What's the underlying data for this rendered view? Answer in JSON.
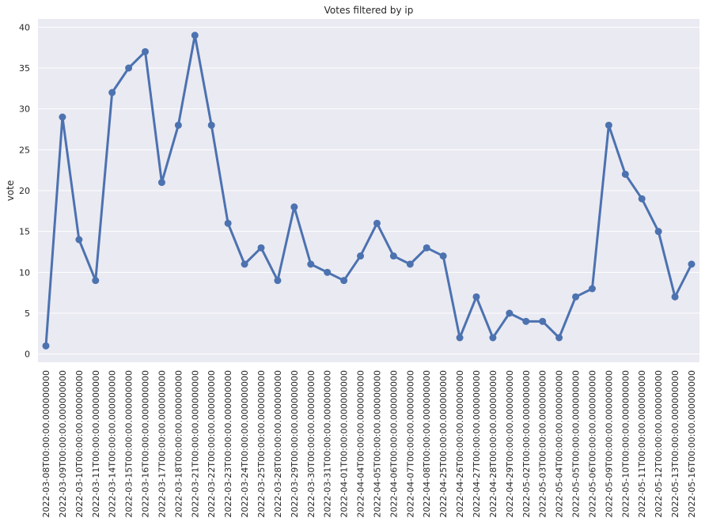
{
  "chart_data": {
    "type": "line",
    "title": "Votes filtered by ip",
    "xlabel": "",
    "ylabel": "vote",
    "ylim": [
      -1,
      41
    ],
    "yticks": [
      0,
      5,
      10,
      15,
      20,
      25,
      30,
      35,
      40
    ],
    "grid": true,
    "colors": {
      "background": "#eaeaf2",
      "grid": "#ffffff",
      "line": "#4c72b0"
    },
    "categories": [
      "2022-03-08T00:00:00.000000000",
      "2022-03-09T00:00:00.000000000",
      "2022-03-10T00:00:00.000000000",
      "2022-03-11T00:00:00.000000000",
      "2022-03-14T00:00:00.000000000",
      "2022-03-15T00:00:00.000000000",
      "2022-03-16T00:00:00.000000000",
      "2022-03-17T00:00:00.000000000",
      "2022-03-18T00:00:00.000000000",
      "2022-03-21T00:00:00.000000000",
      "2022-03-22T00:00:00.000000000",
      "2022-03-23T00:00:00.000000000",
      "2022-03-24T00:00:00.000000000",
      "2022-03-25T00:00:00.000000000",
      "2022-03-28T00:00:00.000000000",
      "2022-03-29T00:00:00.000000000",
      "2022-03-30T00:00:00.000000000",
      "2022-03-31T00:00:00.000000000",
      "2022-04-01T00:00:00.000000000",
      "2022-04-04T00:00:00.000000000",
      "2022-04-05T00:00:00.000000000",
      "2022-04-06T00:00:00.000000000",
      "2022-04-07T00:00:00.000000000",
      "2022-04-08T00:00:00.000000000",
      "2022-04-25T00:00:00.000000000",
      "2022-04-26T00:00:00.000000000",
      "2022-04-27T00:00:00.000000000",
      "2022-04-28T00:00:00.000000000",
      "2022-04-29T00:00:00.000000000",
      "2022-05-02T00:00:00.000000000",
      "2022-05-03T00:00:00.000000000",
      "2022-05-04T00:00:00.000000000",
      "2022-05-05T00:00:00.000000000",
      "2022-05-06T00:00:00.000000000",
      "2022-05-09T00:00:00.000000000",
      "2022-05-10T00:00:00.000000000",
      "2022-05-11T00:00:00.000000000",
      "2022-05-12T00:00:00.000000000",
      "2022-05-13T00:00:00.000000000",
      "2022-05-16T00:00:00.000000000"
    ],
    "series": [
      {
        "values": [
          1,
          29,
          14,
          9,
          32,
          35,
          37,
          21,
          28,
          39,
          28,
          16,
          11,
          13,
          9,
          18,
          11,
          10,
          9,
          12,
          16,
          12,
          11,
          13,
          12,
          2,
          7,
          2,
          5,
          4,
          4,
          2,
          7,
          8,
          28,
          22,
          19,
          15,
          7,
          11
        ]
      }
    ]
  }
}
